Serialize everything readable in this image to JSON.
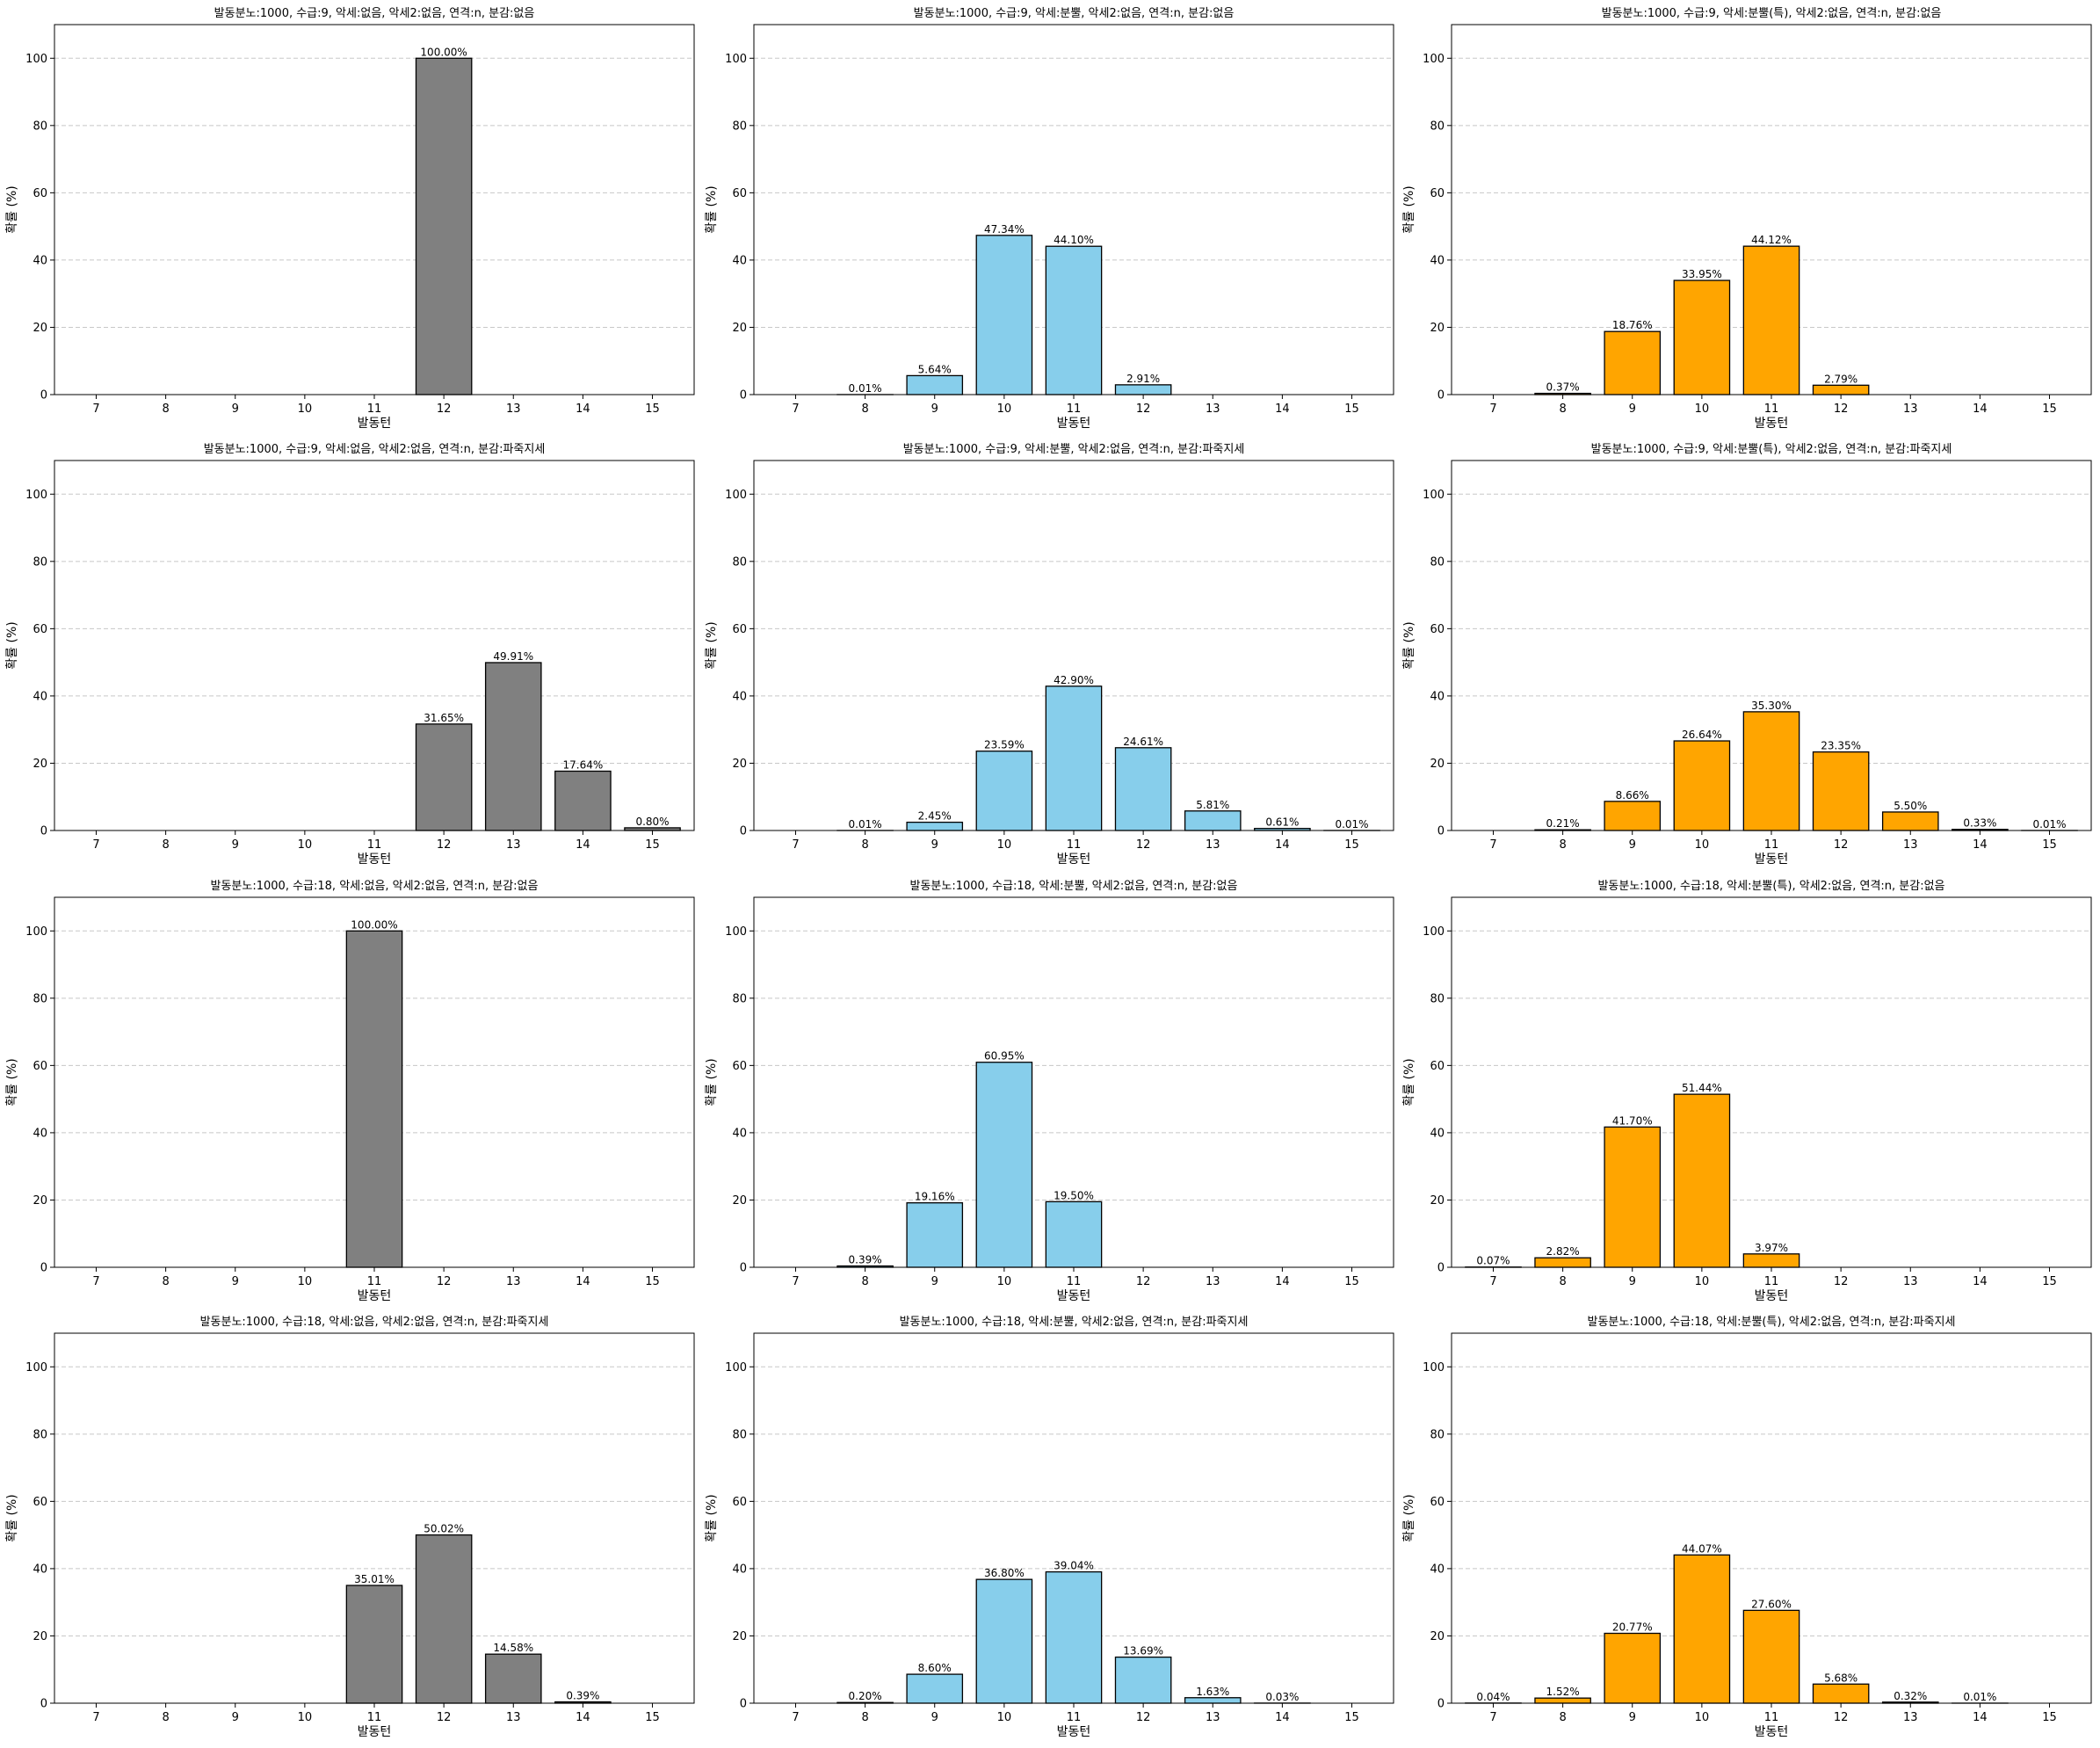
{
  "layout": {
    "rows": 4,
    "cols": 3
  },
  "colors": {
    "gray": "#808080",
    "blue": "#87CEEB",
    "orange": "#FFA500",
    "edge": "#000000",
    "grid": "#c8c8c8"
  },
  "chart_data": [
    {
      "type": "bar",
      "title": "발동분노:1000, 수급:9, 악세:없음, 악세2:없음, 연격:n, 분감:없음",
      "color": "gray",
      "categories": [
        "7",
        "8",
        "9",
        "10",
        "11",
        "12",
        "13",
        "14",
        "15"
      ],
      "values": [
        0,
        0,
        0,
        0,
        0,
        100.0,
        0,
        0,
        0
      ],
      "labels": [
        "",
        "",
        "",
        "",
        "",
        "100.00%",
        "",
        "",
        ""
      ],
      "xlabel": "발동턴",
      "ylabel": "확률 (%)",
      "ylim": [
        0,
        110
      ],
      "yticks": [
        0,
        20,
        40,
        60,
        80,
        100
      ],
      "grid": "y-dashed"
    },
    {
      "type": "bar",
      "title": "발동분노:1000, 수급:9, 악세:분뿔, 악세2:없음, 연격:n, 분감:없음",
      "color": "blue",
      "categories": [
        "7",
        "8",
        "9",
        "10",
        "11",
        "12",
        "13",
        "14",
        "15"
      ],
      "values": [
        0,
        0.01,
        5.64,
        47.34,
        44.1,
        2.91,
        0,
        0,
        0
      ],
      "labels": [
        "",
        "0.01%",
        "5.64%",
        "47.34%",
        "44.10%",
        "2.91%",
        "",
        "",
        ""
      ],
      "xlabel": "발동턴",
      "ylabel": "확률 (%)",
      "ylim": [
        0,
        110
      ],
      "yticks": [
        0,
        20,
        40,
        60,
        80,
        100
      ],
      "grid": "y-dashed"
    },
    {
      "type": "bar",
      "title": "발동분노:1000, 수급:9, 악세:분뿔(특), 악세2:없음, 연격:n, 분감:없음",
      "color": "orange",
      "categories": [
        "7",
        "8",
        "9",
        "10",
        "11",
        "12",
        "13",
        "14",
        "15"
      ],
      "values": [
        0,
        0.37,
        18.76,
        33.95,
        44.12,
        2.79,
        0,
        0,
        0
      ],
      "labels": [
        "",
        "0.37%",
        "18.76%",
        "33.95%",
        "44.12%",
        "2.79%",
        "",
        "",
        ""
      ],
      "xlabel": "발동턴",
      "ylabel": "확률 (%)",
      "ylim": [
        0,
        110
      ],
      "yticks": [
        0,
        20,
        40,
        60,
        80,
        100
      ],
      "grid": "y-dashed"
    },
    {
      "type": "bar",
      "title": "발동분노:1000, 수급:9, 악세:없음, 악세2:없음, 연격:n, 분감:파죽지세",
      "color": "gray",
      "categories": [
        "7",
        "8",
        "9",
        "10",
        "11",
        "12",
        "13",
        "14",
        "15"
      ],
      "values": [
        0,
        0,
        0,
        0,
        0,
        31.65,
        49.91,
        17.64,
        0.8
      ],
      "labels": [
        "",
        "",
        "",
        "",
        "",
        "31.65%",
        "49.91%",
        "17.64%",
        "0.80%"
      ],
      "xlabel": "발동턴",
      "ylabel": "확률 (%)",
      "ylim": [
        0,
        110
      ],
      "yticks": [
        0,
        20,
        40,
        60,
        80,
        100
      ],
      "grid": "y-dashed"
    },
    {
      "type": "bar",
      "title": "발동분노:1000, 수급:9, 악세:분뿔, 악세2:없음, 연격:n, 분감:파죽지세",
      "color": "blue",
      "categories": [
        "7",
        "8",
        "9",
        "10",
        "11",
        "12",
        "13",
        "14",
        "15"
      ],
      "values": [
        0,
        0.01,
        2.45,
        23.59,
        42.9,
        24.61,
        5.81,
        0.61,
        0.01
      ],
      "labels": [
        "",
        "0.01%",
        "2.45%",
        "23.59%",
        "42.90%",
        "24.61%",
        "5.81%",
        "0.61%",
        "0.01%"
      ],
      "xlabel": "발동턴",
      "ylabel": "확률 (%)",
      "ylim": [
        0,
        110
      ],
      "yticks": [
        0,
        20,
        40,
        60,
        80,
        100
      ],
      "grid": "y-dashed"
    },
    {
      "type": "bar",
      "title": "발동분노:1000, 수급:9, 악세:분뿔(특), 악세2:없음, 연격:n, 분감:파죽지세",
      "color": "orange",
      "categories": [
        "7",
        "8",
        "9",
        "10",
        "11",
        "12",
        "13",
        "14",
        "15"
      ],
      "values": [
        0,
        0.21,
        8.66,
        26.64,
        35.3,
        23.35,
        5.5,
        0.33,
        0.01
      ],
      "labels": [
        "",
        "0.21%",
        "8.66%",
        "26.64%",
        "35.30%",
        "23.35%",
        "5.50%",
        "0.33%",
        "0.01%"
      ],
      "xlabel": "발동턴",
      "ylabel": "확률 (%)",
      "ylim": [
        0,
        110
      ],
      "yticks": [
        0,
        20,
        40,
        60,
        80,
        100
      ],
      "grid": "y-dashed"
    },
    {
      "type": "bar",
      "title": "발동분노:1000, 수급:18, 악세:없음, 악세2:없음, 연격:n, 분감:없음",
      "color": "gray",
      "categories": [
        "7",
        "8",
        "9",
        "10",
        "11",
        "12",
        "13",
        "14",
        "15"
      ],
      "values": [
        0,
        0,
        0,
        0,
        100.0,
        0,
        0,
        0,
        0
      ],
      "labels": [
        "",
        "",
        "",
        "",
        "100.00%",
        "",
        "",
        "",
        ""
      ],
      "xlabel": "발동턴",
      "ylabel": "확률 (%)",
      "ylim": [
        0,
        110
      ],
      "yticks": [
        0,
        20,
        40,
        60,
        80,
        100
      ],
      "grid": "y-dashed"
    },
    {
      "type": "bar",
      "title": "발동분노:1000, 수급:18, 악세:분뿔, 악세2:없음, 연격:n, 분감:없음",
      "color": "blue",
      "categories": [
        "7",
        "8",
        "9",
        "10",
        "11",
        "12",
        "13",
        "14",
        "15"
      ],
      "values": [
        0,
        0.39,
        19.16,
        60.95,
        19.5,
        0,
        0,
        0,
        0
      ],
      "labels": [
        "",
        "0.39%",
        "19.16%",
        "60.95%",
        "19.50%",
        "",
        "",
        "",
        ""
      ],
      "xlabel": "발동턴",
      "ylabel": "확률 (%)",
      "ylim": [
        0,
        110
      ],
      "yticks": [
        0,
        20,
        40,
        60,
        80,
        100
      ],
      "grid": "y-dashed"
    },
    {
      "type": "bar",
      "title": "발동분노:1000, 수급:18, 악세:분뿔(특), 악세2:없음, 연격:n, 분감:없음",
      "color": "orange",
      "categories": [
        "7",
        "8",
        "9",
        "10",
        "11",
        "12",
        "13",
        "14",
        "15"
      ],
      "values": [
        0.07,
        2.82,
        41.7,
        51.44,
        3.97,
        0,
        0,
        0,
        0
      ],
      "labels": [
        "0.07%",
        "2.82%",
        "41.70%",
        "51.44%",
        "3.97%",
        "",
        "",
        "",
        ""
      ],
      "xlabel": "발동턴",
      "ylabel": "확률 (%)",
      "ylim": [
        0,
        110
      ],
      "yticks": [
        0,
        20,
        40,
        60,
        80,
        100
      ],
      "grid": "y-dashed"
    },
    {
      "type": "bar",
      "title": "발동분노:1000, 수급:18, 악세:없음, 악세2:없음, 연격:n, 분감:파죽지세",
      "color": "gray",
      "categories": [
        "7",
        "8",
        "9",
        "10",
        "11",
        "12",
        "13",
        "14",
        "15"
      ],
      "values": [
        0,
        0,
        0,
        0,
        35.01,
        50.02,
        14.58,
        0.39,
        0
      ],
      "labels": [
        "",
        "",
        "",
        "",
        "35.01%",
        "50.02%",
        "14.58%",
        "0.39%",
        ""
      ],
      "xlabel": "발동턴",
      "ylabel": "확률 (%)",
      "ylim": [
        0,
        110
      ],
      "yticks": [
        0,
        20,
        40,
        60,
        80,
        100
      ],
      "grid": "y-dashed"
    },
    {
      "type": "bar",
      "title": "발동분노:1000, 수급:18, 악세:분뿔, 악세2:없음, 연격:n, 분감:파죽지세",
      "color": "blue",
      "categories": [
        "7",
        "8",
        "9",
        "10",
        "11",
        "12",
        "13",
        "14",
        "15"
      ],
      "values": [
        0,
        0.2,
        8.6,
        36.8,
        39.04,
        13.69,
        1.63,
        0.03,
        0
      ],
      "labels": [
        "",
        "0.20%",
        "8.60%",
        "36.80%",
        "39.04%",
        "13.69%",
        "1.63%",
        "0.03%",
        ""
      ],
      "xlabel": "발동턴",
      "ylabel": "확률 (%)",
      "ylim": [
        0,
        110
      ],
      "yticks": [
        0,
        20,
        40,
        60,
        80,
        100
      ],
      "grid": "y-dashed"
    },
    {
      "type": "bar",
      "title": "발동분노:1000, 수급:18, 악세:분뿔(특), 악세2:없음, 연격:n, 분감:파죽지세",
      "color": "orange",
      "categories": [
        "7",
        "8",
        "9",
        "10",
        "11",
        "12",
        "13",
        "14",
        "15"
      ],
      "values": [
        0.04,
        1.52,
        20.77,
        44.07,
        27.6,
        5.68,
        0.32,
        0.01,
        0
      ],
      "labels": [
        "0.04%",
        "1.52%",
        "20.77%",
        "44.07%",
        "27.60%",
        "5.68%",
        "0.32%",
        "0.01%",
        ""
      ],
      "xlabel": "발동턴",
      "ylabel": "확률 (%)",
      "ylim": [
        0,
        110
      ],
      "yticks": [
        0,
        20,
        40,
        60,
        80,
        100
      ],
      "grid": "y-dashed"
    }
  ]
}
